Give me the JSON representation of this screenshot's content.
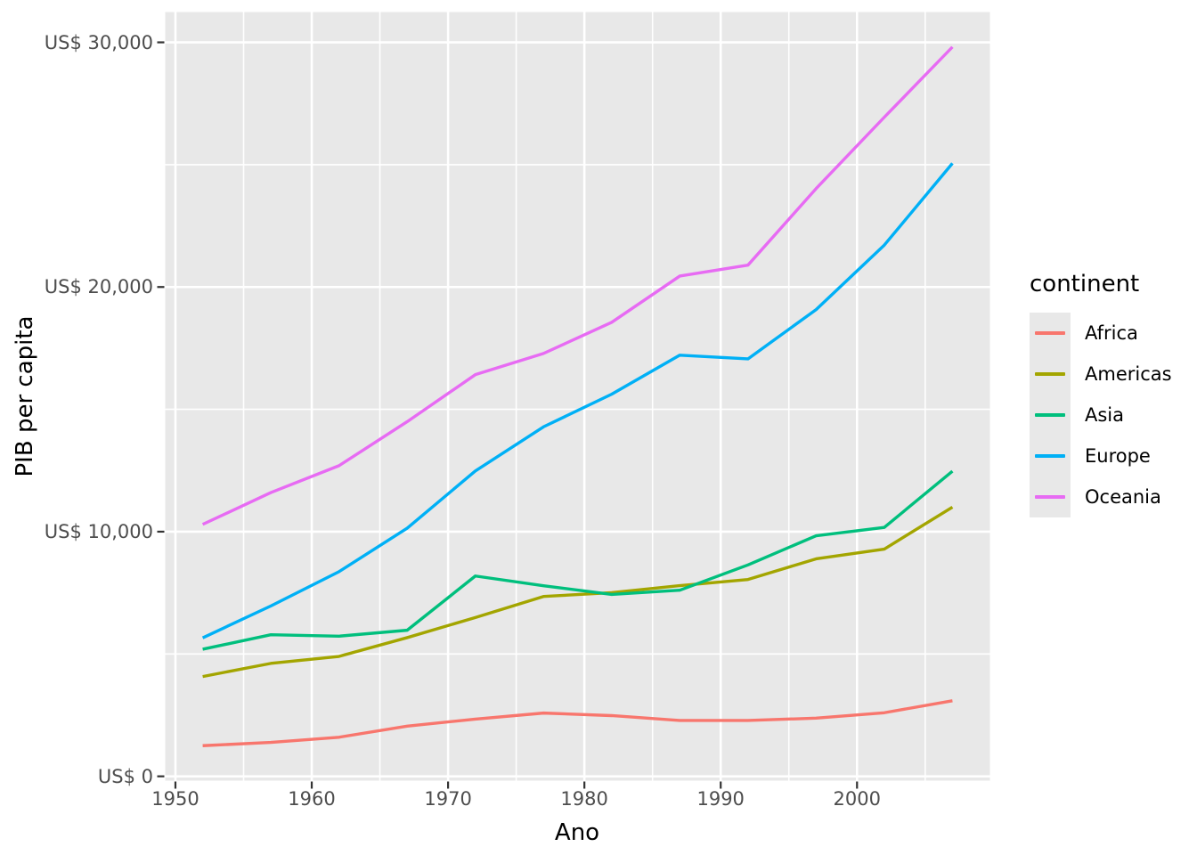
{
  "chart_data": {
    "type": "line",
    "title": "",
    "xlabel": "Ano",
    "ylabel": "PIB per capita",
    "legend_title": "continent",
    "legend_position": "right",
    "x": [
      1952,
      1957,
      1962,
      1967,
      1972,
      1977,
      1982,
      1987,
      1992,
      1997,
      2002,
      2007
    ],
    "series": [
      {
        "name": "Africa",
        "color": "#F8766D",
        "values": [
          1252.6,
          1385.2,
          1598.1,
          2050.0,
          2339.6,
          2585.9,
          2481.6,
          2282.7,
          2281.8,
          2378.8,
          2599.4,
          3089.0
        ]
      },
      {
        "name": "Americas",
        "color": "#A3A500",
        "values": [
          4079.1,
          4616.0,
          4901.5,
          5668.3,
          6491.3,
          7352.0,
          7506.7,
          7793.4,
          8044.9,
          8889.3,
          9287.7,
          11003.0
        ]
      },
      {
        "name": "Asia",
        "color": "#00BF7D",
        "values": [
          5195.5,
          5787.7,
          5729.4,
          5971.2,
          8187.5,
          7791.3,
          7434.1,
          7608.2,
          8639.7,
          9834.1,
          10174.1,
          12473.0
        ]
      },
      {
        "name": "Europe",
        "color": "#00B0F6",
        "values": [
          5661.1,
          6963.0,
          8365.5,
          10143.8,
          12479.6,
          14284.0,
          15617.9,
          17214.3,
          17061.6,
          19076.8,
          21711.7,
          25054.5
        ]
      },
      {
        "name": "Oceania",
        "color": "#E76BF3",
        "values": [
          10298.1,
          11598.5,
          12696.5,
          14495.0,
          16417.3,
          17284.0,
          18554.7,
          20448.0,
          20894.0,
          24024.2,
          26938.8,
          29810.2
        ]
      }
    ],
    "x_major_ticks": [
      {
        "value": 1950,
        "label": "1950"
      },
      {
        "value": 1960,
        "label": "1960"
      },
      {
        "value": 1970,
        "label": "1970"
      },
      {
        "value": 1980,
        "label": "1980"
      },
      {
        "value": 1990,
        "label": "1990"
      },
      {
        "value": 2000,
        "label": "2000"
      }
    ],
    "x_minor_ticks": [
      1955,
      1965,
      1975,
      1985,
      1995,
      2005
    ],
    "y_major_ticks": [
      {
        "value": 0,
        "label": "US$ 0"
      },
      {
        "value": 10000,
        "label": "US$ 10,000"
      },
      {
        "value": 20000,
        "label": "US$ 20,000"
      },
      {
        "value": 30000,
        "label": "US$ 30,000"
      }
    ],
    "y_minor_ticks": [
      5000,
      15000,
      25000
    ],
    "xlim": [
      1949.25,
      2009.75
    ],
    "ylim": [
      -176,
      31239
    ],
    "grid": true
  },
  "colors": {
    "panel_background": "#E8E8E8",
    "grid_line": "#FFFFFF",
    "tick_mark": "#333333",
    "tick_label": "#4D4D4D",
    "title_text": "#000000"
  }
}
